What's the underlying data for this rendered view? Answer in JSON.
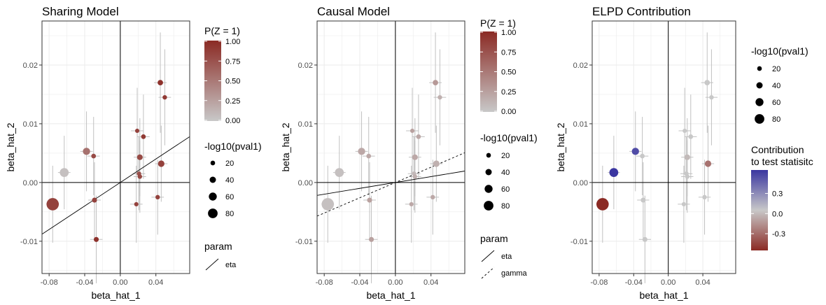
{
  "chart_data": [
    {
      "type": "scatter",
      "title": "Sharing Model",
      "xlabel": "beta_hat_1",
      "ylabel": "beta_hat_2",
      "xlim": [
        -0.088,
        0.078
      ],
      "ylim": [
        -0.0155,
        0.0275
      ],
      "x_ticks": [
        -0.08,
        -0.04,
        0.0,
        0.04
      ],
      "x_tick_labels": [
        "-0.08",
        "-0.04",
        "0.00",
        "0.04"
      ],
      "y_ticks": [
        -0.01,
        0.0,
        0.01,
        0.02
      ],
      "y_tick_labels": [
        "-0.01",
        "0.00",
        "0.01",
        "0.02"
      ],
      "grid": true,
      "color_variable": "P(Z = 1)",
      "points": [
        {
          "x": -0.076,
          "y": -0.0037,
          "pval": 90,
          "z": 0.85
        },
        {
          "x": -0.063,
          "y": 0.0017,
          "pval": 55,
          "z": 0.05
        },
        {
          "x": -0.038,
          "y": 0.0053,
          "pval": 38,
          "z": 0.55
        },
        {
          "x": -0.03,
          "y": 0.0045,
          "pval": 12,
          "z": 0.8
        },
        {
          "x": -0.029,
          "y": -0.003,
          "pval": 15,
          "z": 0.85
        },
        {
          "x": -0.027,
          "y": -0.0097,
          "pval": 15,
          "z": 0.95
        },
        {
          "x": 0.018,
          "y": -0.0037,
          "pval": 8,
          "z": 0.85
        },
        {
          "x": 0.019,
          "y": 0.0088,
          "pval": 8,
          "z": 0.85
        },
        {
          "x": 0.022,
          "y": 0.0043,
          "pval": 22,
          "z": 0.8
        },
        {
          "x": 0.021,
          "y": 0.0015,
          "pval": 10,
          "z": 0.75
        },
        {
          "x": 0.022,
          "y": 0.001,
          "pval": 10,
          "z": 0.8
        },
        {
          "x": 0.026,
          "y": 0.0078,
          "pval": 12,
          "z": 0.9
        },
        {
          "x": 0.042,
          "y": -0.0025,
          "pval": 10,
          "z": 0.85
        },
        {
          "x": 0.045,
          "y": 0.017,
          "pval": 20,
          "z": 0.95
        },
        {
          "x": 0.046,
          "y": 0.0032,
          "pval": 30,
          "z": 0.85
        },
        {
          "x": 0.05,
          "y": 0.0145,
          "pval": 10,
          "z": 0.9
        }
      ],
      "lines": [
        {
          "param": "eta",
          "slope": 0.1,
          "intercept": 0,
          "dash": "solid"
        }
      ],
      "color_legend": {
        "title": "P(Z = 1)",
        "labels": [
          "1.00",
          "0.75",
          "0.50",
          "0.25",
          "0.00"
        ]
      },
      "size_legend": {
        "title": "-log10(pval1)",
        "labels": [
          "20",
          "40",
          "60",
          "80"
        ]
      },
      "line_legend": {
        "title": "param",
        "labels": [
          "eta"
        ]
      }
    },
    {
      "type": "scatter",
      "title": "Causal Model",
      "xlabel": "beta_hat_1",
      "ylabel": "beta_hat_2",
      "xlim": [
        -0.088,
        0.078
      ],
      "ylim": [
        -0.0155,
        0.0275
      ],
      "x_ticks": [
        -0.08,
        -0.04,
        0.0,
        0.04
      ],
      "x_tick_labels": [
        "-0.08",
        "-0.04",
        "0.00",
        "0.04"
      ],
      "y_ticks": [
        -0.01,
        0.0,
        0.01,
        0.02
      ],
      "y_tick_labels": [
        "-0.01",
        "0.00",
        "0.01",
        "0.02"
      ],
      "grid": true,
      "color_variable": "P(Z = 1)",
      "points": [
        {
          "x": -0.076,
          "y": -0.0037,
          "pval": 90,
          "z": 0.05
        },
        {
          "x": -0.063,
          "y": 0.0017,
          "pval": 55,
          "z": 0.05
        },
        {
          "x": -0.038,
          "y": 0.0053,
          "pval": 38,
          "z": 0.2
        },
        {
          "x": -0.03,
          "y": 0.0045,
          "pval": 12,
          "z": 0.2
        },
        {
          "x": -0.029,
          "y": -0.003,
          "pval": 15,
          "z": 0.25
        },
        {
          "x": -0.027,
          "y": -0.0097,
          "pval": 15,
          "z": 0.25
        },
        {
          "x": 0.018,
          "y": -0.0037,
          "pval": 8,
          "z": 0.2
        },
        {
          "x": 0.019,
          "y": 0.0088,
          "pval": 8,
          "z": 0.25
        },
        {
          "x": 0.022,
          "y": 0.0043,
          "pval": 22,
          "z": 0.2
        },
        {
          "x": 0.021,
          "y": 0.0015,
          "pval": 10,
          "z": 0.1
        },
        {
          "x": 0.022,
          "y": 0.001,
          "pval": 10,
          "z": 0.15
        },
        {
          "x": 0.026,
          "y": 0.0078,
          "pval": 12,
          "z": 0.2
        },
        {
          "x": 0.042,
          "y": -0.0025,
          "pval": 10,
          "z": 0.2
        },
        {
          "x": 0.045,
          "y": 0.017,
          "pval": 20,
          "z": 0.3
        },
        {
          "x": 0.046,
          "y": 0.0032,
          "pval": 30,
          "z": 0.15
        },
        {
          "x": 0.05,
          "y": 0.0145,
          "pval": 10,
          "z": 0.15
        }
      ],
      "lines": [
        {
          "param": "eta",
          "slope": 0.025,
          "intercept": 0,
          "dash": "solid"
        },
        {
          "param": "gamma",
          "slope": 0.065,
          "intercept": 0,
          "dash": "dashed"
        }
      ],
      "color_legend": {
        "title": "P(Z = 1)",
        "labels": [
          "1.00",
          "0.75",
          "0.50",
          "0.25",
          "0.00"
        ]
      },
      "size_legend": {
        "title": "-log10(pval1)",
        "labels": [
          "20",
          "40",
          "60",
          "80"
        ]
      },
      "line_legend": {
        "title": "param",
        "labels": [
          "eta",
          "gamma"
        ]
      }
    },
    {
      "type": "scatter",
      "title": "ELPD Contribution",
      "xlabel": "beta_hat_1",
      "ylabel": "beta_hat_2",
      "xlim": [
        -0.088,
        0.078
      ],
      "ylim": [
        -0.0155,
        0.0275
      ],
      "x_ticks": [
        -0.08,
        -0.04,
        0.0,
        0.04
      ],
      "x_tick_labels": [
        "-0.08",
        "-0.04",
        "0.00",
        "0.04"
      ],
      "y_ticks": [
        -0.01,
        0.0,
        0.01,
        0.02
      ],
      "y_tick_labels": [
        "-0.01",
        "0.00",
        "0.01",
        "0.02"
      ],
      "grid": true,
      "color_variable": "Contribution to test statisitc",
      "points": [
        {
          "x": -0.076,
          "y": -0.0037,
          "pval": 90,
          "c": -0.55
        },
        {
          "x": -0.063,
          "y": 0.0017,
          "pval": 55,
          "c": 0.65
        },
        {
          "x": -0.038,
          "y": 0.0053,
          "pval": 38,
          "c": 0.55
        },
        {
          "x": -0.03,
          "y": 0.0045,
          "pval": 12,
          "c": 0.0
        },
        {
          "x": -0.029,
          "y": -0.003,
          "pval": 15,
          "c": 0.0
        },
        {
          "x": -0.027,
          "y": -0.0097,
          "pval": 15,
          "c": 0.0
        },
        {
          "x": 0.018,
          "y": -0.0037,
          "pval": 8,
          "c": 0.0
        },
        {
          "x": 0.019,
          "y": 0.0088,
          "pval": 8,
          "c": 0.0
        },
        {
          "x": 0.022,
          "y": 0.0043,
          "pval": 22,
          "c": -0.05
        },
        {
          "x": 0.021,
          "y": 0.0015,
          "pval": 10,
          "c": 0.0
        },
        {
          "x": 0.022,
          "y": 0.001,
          "pval": 10,
          "c": 0.0
        },
        {
          "x": 0.026,
          "y": 0.0078,
          "pval": 12,
          "c": 0.0
        },
        {
          "x": 0.042,
          "y": -0.0025,
          "pval": 10,
          "c": 0.0
        },
        {
          "x": 0.045,
          "y": 0.017,
          "pval": 20,
          "c": 0.0
        },
        {
          "x": 0.046,
          "y": 0.0032,
          "pval": 30,
          "c": -0.3
        },
        {
          "x": 0.05,
          "y": 0.0145,
          "pval": 10,
          "c": 0.0
        }
      ],
      "lines": [],
      "size_legend": {
        "title": "-log10(pval1)",
        "labels": [
          "20",
          "40",
          "60",
          "80"
        ]
      },
      "color_legend": {
        "title_lines": [
          "Contribution",
          "to test statisitc"
        ],
        "labels": [
          "0.3",
          "0.0",
          "-0.3"
        ]
      }
    }
  ],
  "colors": {
    "p_low": "#c8c8c8",
    "p_high": "#8b2a24",
    "contrib_neg": "#8b2a24",
    "contrib_mid": "#c8c8c8",
    "contrib_pos": "#3a36a0",
    "grid": "#ebebeb",
    "panel_border": "#333333",
    "error_bar": "#c0c0c0"
  }
}
